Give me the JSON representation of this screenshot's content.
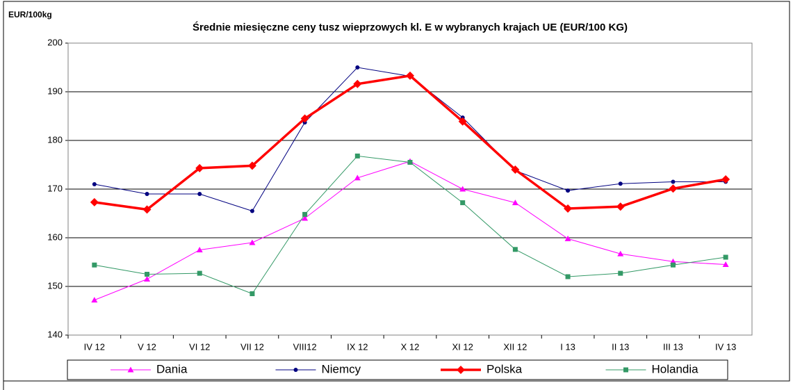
{
  "chart_data": {
    "type": "line",
    "title": "Średnie miesięczne ceny tusz wieprzowych kl. E w wybranych krajach UE (EUR/100 KG)",
    "y_label": "EUR/100kg",
    "categories": [
      "IV 12",
      "V 12",
      "VI 12",
      "VII 12",
      "VIII12",
      "IX 12",
      "X 12",
      "XI 12",
      "XII 12",
      "I 13",
      "II 13",
      "III 13",
      "IV 13"
    ],
    "series": [
      {
        "name": "Dania",
        "color": "#ff00ff",
        "marker": "triangle",
        "values": [
          147.2,
          151.5,
          157.5,
          159,
          164,
          172.3,
          175.7,
          170,
          167.2,
          159.8,
          156.7,
          155.1,
          154.5
        ]
      },
      {
        "name": "Niemcy",
        "color": "#000080",
        "marker": "circle",
        "values": [
          171,
          169,
          169,
          165.5,
          183.7,
          195,
          193.2,
          184.7,
          173.8,
          169.7,
          171.1,
          171.5,
          171.5
        ]
      },
      {
        "name": "Polska",
        "color": "#ff0000",
        "marker": "diamond",
        "values": [
          167.3,
          165.8,
          174.3,
          174.8,
          184.5,
          191.6,
          193.3,
          183.9,
          174,
          166,
          166.4,
          170.1,
          172
        ]
      },
      {
        "name": "Holandia",
        "color": "#339966",
        "marker": "square",
        "values": [
          154.4,
          152.5,
          152.7,
          148.5,
          164.8,
          176.8,
          175.5,
          167.2,
          157.6,
          152,
          152.7,
          154.4,
          156
        ]
      }
    ],
    "ylim": [
      140,
      200
    ],
    "yticks": [
      140,
      150,
      160,
      170,
      180,
      190,
      200
    ],
    "grid": true,
    "legend": "bottom"
  }
}
